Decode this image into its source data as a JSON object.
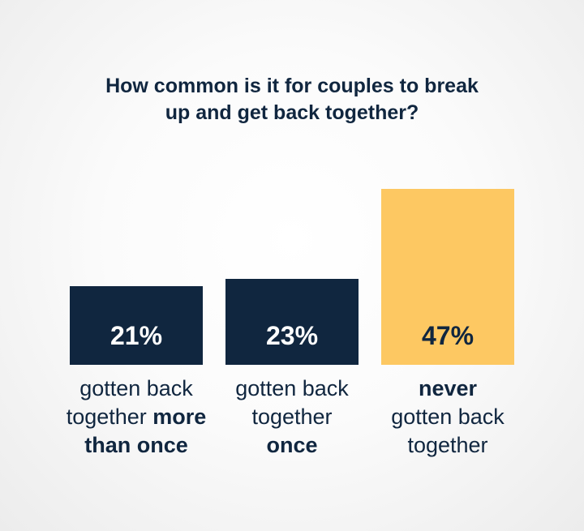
{
  "chart_data": {
    "type": "bar",
    "title": "How common is it for couples to break up and get back together?",
    "title_lines": [
      "How common is it for couples to break",
      "up and get back together?"
    ],
    "categories": [
      [
        {
          "t": "gotten back",
          "b": false
        },
        {
          "t": "\n",
          "b": false
        },
        {
          "t": "together ",
          "b": false
        },
        {
          "t": "more",
          "b": true
        },
        {
          "t": "\n",
          "b": false
        },
        {
          "t": "than once",
          "b": true
        }
      ],
      [
        {
          "t": "gotten back",
          "b": false
        },
        {
          "t": "\n",
          "b": false
        },
        {
          "t": "together",
          "b": false
        },
        {
          "t": "\n",
          "b": false
        },
        {
          "t": "once",
          "b": true
        }
      ],
      [
        {
          "t": "never",
          "b": true
        },
        {
          "t": "\n",
          "b": false
        },
        {
          "t": "gotten back",
          "b": false
        },
        {
          "t": "\n",
          "b": false
        },
        {
          "t": "together",
          "b": false
        }
      ]
    ],
    "values": [
      21,
      23,
      47
    ],
    "data_labels": [
      "21%",
      "23%",
      "47%"
    ],
    "colors": [
      "#10263f",
      "#10263f",
      "#fdc862"
    ],
    "label_colors": [
      "#ffffff",
      "#ffffff",
      "#10263f"
    ],
    "grid": false,
    "legend": "none"
  }
}
